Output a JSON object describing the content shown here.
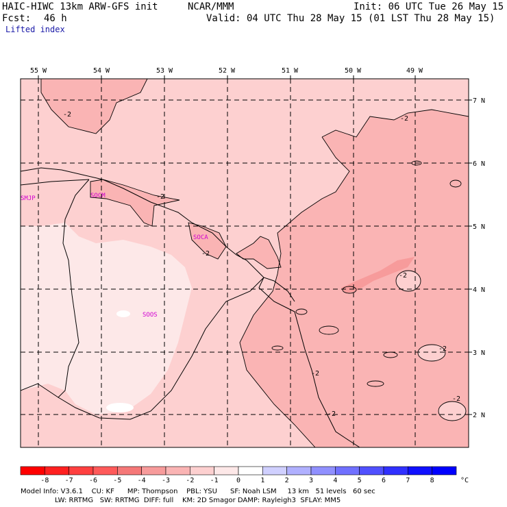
{
  "header": {
    "model": "HAIC-HIWC 13km ARW-GFS init",
    "org": "NCAR/MMM",
    "init": "Init: 06 UTC Tue 26 May 15",
    "fcst_label": "Fcst:",
    "fcst_value": "46 h",
    "valid": "Valid: 04 UTC Thu 28 May 15 (01 LST Thu 28 May 15)",
    "field": "Lifted index"
  },
  "map": {
    "lon_labels": [
      "55 W",
      "54 W",
      "53 W",
      "52 W",
      "51 W",
      "50 W",
      "49 W"
    ],
    "lat_labels": [
      "7 N",
      "6 N",
      "5 N",
      "4 N",
      "3 N",
      "2 N"
    ],
    "stations": [
      "SMJP",
      "SOCM",
      "SOCA",
      "SOOS"
    ],
    "contour_label": "-2",
    "colors": {
      "light_pink": "#fdd0d0",
      "mid_pink": "#fab4b4",
      "dark_pink": "#f79b9b",
      "very_light": "#fde8e8",
      "lines": "#000000",
      "station": "#d100d1"
    }
  },
  "colorbar": {
    "ticks": [
      "-8",
      "-7",
      "-6",
      "-5",
      "-4",
      "-3",
      "-2",
      "-1",
      "0",
      "1",
      "2",
      "3",
      "4",
      "5",
      "6",
      "7",
      "8"
    ],
    "unit": "°C",
    "colors": [
      "#ff0000",
      "#ff2020",
      "#ff4040",
      "#ff5a5a",
      "#f57878",
      "#f79b9b",
      "#fab4b4",
      "#fdd0d0",
      "#fde8e8",
      "#ffffff",
      "#d0d0ff",
      "#b0b0ff",
      "#9090ff",
      "#7070ff",
      "#5050ff",
      "#3030ff",
      "#1010ff",
      "#0000ff"
    ]
  },
  "footer": {
    "line1": "Model Info: V3.6.1    CU: KF      MP: Thompson    PBL: YSU      SF: Noah LSM     13 km   51 levels   60 sec",
    "line2": "LW: RRTMG   SW: RRTMG  DIFF: full    KM: 2D Smagor DAMP: Rayleigh3  SFLAY: MM5"
  }
}
